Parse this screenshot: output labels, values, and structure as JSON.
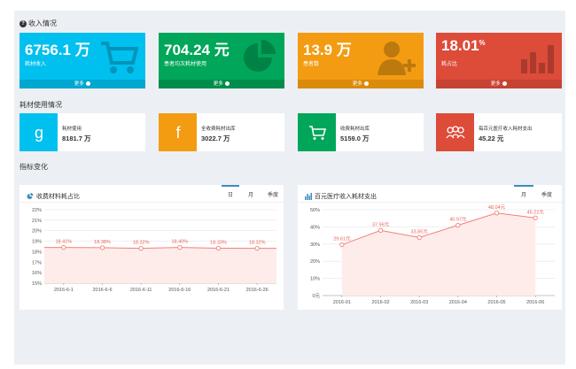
{
  "sections": {
    "income": "收入情况",
    "material": "耗材使用情况",
    "indicator": "指标变化"
  },
  "stats": [
    {
      "value": "6756.1 万",
      "sup": "",
      "label": "耗材收入",
      "more": "更多",
      "color": "#00c0ef",
      "barColor": "#00a7d0",
      "icon": "cart-icon"
    },
    {
      "value": "704.24 元",
      "sup": "",
      "label": "患者均次耗材使用",
      "more": "更多",
      "color": "#00a65a",
      "barColor": "#008d4c",
      "icon": "pie-chart-icon"
    },
    {
      "value": "13.9 万",
      "sup": "",
      "label": "患者数",
      "more": "更多",
      "color": "#f39c12",
      "barColor": "#db8b0b",
      "icon": "user-add-icon"
    },
    {
      "value": "18.01",
      "sup": "%",
      "label": "耗占比",
      "more": "更多",
      "color": "#dd4b39",
      "barColor": "#c64333",
      "icon": "bar-chart-icon"
    }
  ],
  "infos": [
    {
      "title": "耗材使用",
      "value": "8181.7 万",
      "color": "#00c0ef",
      "icon": "google-icon"
    },
    {
      "title": "全收费耗材出库",
      "value": "3022.7 万",
      "color": "#f39c12",
      "icon": "facebook-icon"
    },
    {
      "title": "收费耗材出库",
      "value": "5159.0 万",
      "color": "#00a65a",
      "icon": "shopping-cart-icon"
    },
    {
      "title": "每百元医疗收入耗材支出",
      "value": "45.22 元",
      "color": "#dd4b39",
      "icon": "group-icon"
    }
  ],
  "panels": {
    "left": {
      "title": "收费材料耗占比",
      "icon": "pie-icon",
      "tabs": [
        "日",
        "月",
        "季度"
      ],
      "activeTab": 0
    },
    "right": {
      "title": "百元医疗收入耗材支出",
      "icon": "bar-icon",
      "tabs": [
        "月",
        "季度"
      ],
      "activeTab": 0
    }
  },
  "chart_data": [
    {
      "type": "area",
      "categories": [
        "2016-6-1",
        "2016-6-6",
        "2016-6-11",
        "2016-6-16",
        "2016-6-21",
        "2016-6-26"
      ],
      "values": [
        18.41,
        18.38,
        18.32,
        18.4,
        18.33,
        18.32
      ],
      "labels": [
        "18.41%",
        "18.38%",
        "18.32%",
        "18.40%",
        "18.33%",
        "18.32%"
      ],
      "yticks": [
        "15%",
        "16%",
        "17%",
        "18%",
        "19%",
        "20%",
        "21%",
        "22%"
      ],
      "ylim": [
        15,
        22
      ],
      "lineColor": "#f0807c",
      "fillColor": "#fdecea"
    },
    {
      "type": "area",
      "categories": [
        "2016-01",
        "2016-02",
        "2016-03",
        "2016-04",
        "2016-05",
        "2016-06"
      ],
      "values": [
        29.61,
        37.96,
        33.85,
        40.97,
        48.04,
        45.22
      ],
      "labels": [
        "29.61元",
        "37.96元",
        "33.85元",
        "40.97元",
        "48.04元",
        "45.22元"
      ],
      "yticks": [
        "0元",
        "10%",
        "20%",
        "30%",
        "40%",
        "50%"
      ],
      "ylim": [
        0,
        50
      ],
      "lineColor": "#f0807c",
      "fillColor": "#fdecea"
    }
  ]
}
